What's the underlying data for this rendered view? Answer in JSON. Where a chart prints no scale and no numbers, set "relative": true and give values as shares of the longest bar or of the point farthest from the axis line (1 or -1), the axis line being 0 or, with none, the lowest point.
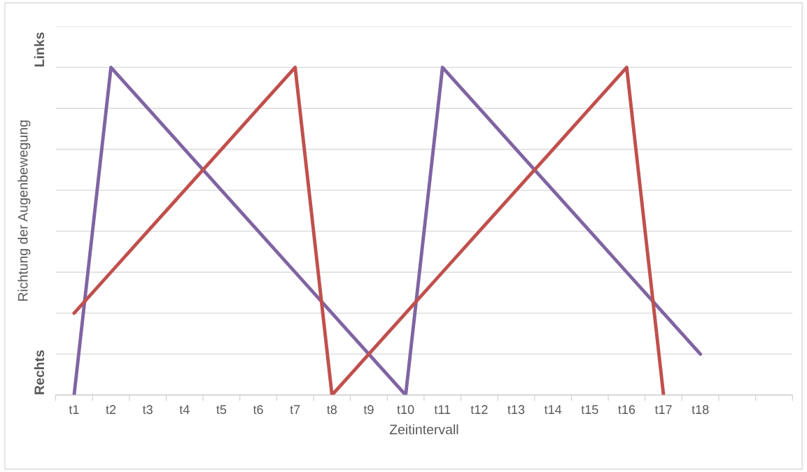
{
  "chart_data": {
    "type": "line",
    "xlabel": "Zeitintervall",
    "ylabel": "Richtung der Augenbewegung",
    "categories": [
      "t1",
      "t2",
      "t3",
      "t4",
      "t5",
      "t6",
      "t7",
      "t8",
      "t9",
      "t10",
      "t11",
      "t12",
      "t13",
      "t14",
      "t15",
      "t16",
      "t17",
      "t18",
      null,
      null
    ],
    "relative": true,
    "series": [
      {
        "color": "#8064a2",
        "values": [
          0,
          1,
          0.875,
          0.75,
          0.625,
          0.5,
          0.375,
          0.25,
          0.125,
          0,
          1,
          0.875,
          0.75,
          0.625,
          0.5,
          0.375,
          0.25,
          0.125,
          null,
          null
        ]
      },
      {
        "color": "#c0504d",
        "values": [
          0.25,
          0.375,
          0.5,
          0.625,
          0.75,
          0.875,
          1,
          0,
          0.125,
          0.25,
          0.375,
          0.5,
          0.625,
          0.75,
          0.875,
          1,
          0,
          null,
          null,
          null
        ]
      }
    ],
    "annotations": [
      "Rechts",
      "Links"
    ],
    "grid": "y",
    "marker": "none",
    "line_style": "solid",
    "tick_labels": "x"
  }
}
